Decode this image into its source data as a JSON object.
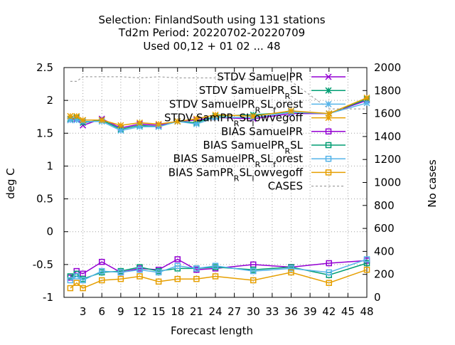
{
  "chart_data": {
    "type": "line",
    "title_lines": [
      "Selection: FinlandSouth using    131 stations",
      "Td2m    Period: 20220702-20220709",
      "Used  00,12  + 01 02 ... 48"
    ],
    "xlabel": "Forecast length",
    "ylabel": "deg C",
    "y2label": "No cases",
    "xlim": [
      0,
      48
    ],
    "ylim": [
      -1,
      2.5
    ],
    "y2lim": [
      0,
      2000
    ],
    "xticks": [
      "3",
      "6",
      "9",
      "12",
      "15",
      "18",
      "21",
      "24",
      "27",
      "30",
      "33",
      "36",
      "39",
      "42",
      "45",
      "48"
    ],
    "yticks": [
      "2.5",
      "2",
      "1.5",
      "1",
      "0.5",
      "0",
      "-0.5",
      "-1"
    ],
    "y2ticks": [
      "2000",
      "1800",
      "1600",
      "1400",
      "1200",
      "1000",
      "800",
      "600",
      "400",
      "200",
      "0"
    ],
    "grid": true,
    "legend_position": "top-right",
    "x": [
      1,
      2,
      3,
      6,
      9,
      12,
      15,
      18,
      21,
      24,
      30,
      36,
      42,
      48
    ],
    "series": [
      {
        "name": "STDV SamuelPR",
        "legend_parts": [
          [
            "STDV SamuelPR",
            ""
          ]
        ],
        "color": "#9400d3",
        "marker": "x",
        "axis": "y1",
        "values": [
          1.7,
          1.72,
          1.62,
          1.72,
          1.58,
          1.64,
          1.62,
          1.68,
          1.7,
          1.74,
          1.72,
          1.8,
          1.8,
          2.0
        ]
      },
      {
        "name": "STDV SamuelPR_RSL",
        "legend_parts": [
          [
            "STDV SamuelPR",
            ""
          ],
          [
            "R",
            "sub"
          ],
          [
            "SL",
            ""
          ]
        ],
        "color": "#009e73",
        "marker": "star",
        "axis": "y1",
        "values": [
          1.72,
          1.74,
          1.66,
          1.7,
          1.56,
          1.62,
          1.6,
          1.68,
          1.66,
          1.76,
          1.78,
          1.82,
          1.8,
          2.02
        ]
      },
      {
        "name": "STDV SamuelPR_RSL_forest",
        "legend_parts": [
          [
            "STDV SamuelPR",
            ""
          ],
          [
            "R",
            "sub"
          ],
          [
            "SL",
            ""
          ],
          [
            "f",
            "sub"
          ],
          [
            "orest",
            ""
          ]
        ],
        "color": "#56b4e9",
        "marker": "star",
        "axis": "y1",
        "values": [
          1.7,
          1.7,
          1.68,
          1.68,
          1.54,
          1.6,
          1.6,
          1.68,
          1.64,
          1.74,
          1.74,
          1.82,
          1.8,
          1.96
        ]
      },
      {
        "name": "STDV SamPR_RSL_lowvegoff",
        "legend_parts": [
          [
            "STDV SamPR",
            ""
          ],
          [
            "R",
            "sub"
          ],
          [
            "SL",
            ""
          ],
          [
            "l",
            "sub"
          ],
          [
            "owvegoff",
            ""
          ]
        ],
        "color": "#e69f00",
        "marker": "star",
        "axis": "y1",
        "values": [
          1.76,
          1.76,
          1.7,
          1.7,
          1.62,
          1.66,
          1.64,
          1.68,
          1.72,
          1.78,
          1.76,
          1.84,
          1.8,
          2.04
        ]
      },
      {
        "name": "BIAS SamuelPR",
        "legend_parts": [
          [
            "BIAS SamuelPR",
            ""
          ]
        ],
        "color": "#9400d3",
        "marker": "square",
        "axis": "y1",
        "values": [
          -0.7,
          -0.6,
          -0.64,
          -0.46,
          -0.62,
          -0.56,
          -0.58,
          -0.42,
          -0.58,
          -0.56,
          -0.5,
          -0.54,
          -0.48,
          -0.44
        ]
      },
      {
        "name": "BIAS SamuelPR_RSL",
        "legend_parts": [
          [
            "BIAS SamuelPR",
            ""
          ],
          [
            "R",
            "sub"
          ],
          [
            "SL",
            ""
          ]
        ],
        "color": "#009e73",
        "marker": "square",
        "axis": "y1",
        "values": [
          -0.68,
          -0.64,
          -0.72,
          -0.62,
          -0.6,
          -0.54,
          -0.6,
          -0.56,
          -0.56,
          -0.54,
          -0.58,
          -0.54,
          -0.66,
          -0.48
        ]
      },
      {
        "name": "BIAS SamuelPR_RSL_forest",
        "legend_parts": [
          [
            "BIAS SamuelPR",
            ""
          ],
          [
            "R",
            "sub"
          ],
          [
            "SL",
            ""
          ],
          [
            "f",
            "sub"
          ],
          [
            "orest",
            ""
          ]
        ],
        "color": "#56b4e9",
        "marker": "square",
        "axis": "y1",
        "values": [
          -0.74,
          -0.68,
          -0.74,
          -0.6,
          -0.62,
          -0.58,
          -0.62,
          -0.52,
          -0.56,
          -0.52,
          -0.6,
          -0.56,
          -0.62,
          -0.42
        ]
      },
      {
        "name": "BIAS SamPR_RSL_lowvegoff",
        "legend_parts": [
          [
            "BIAS SamPR",
            ""
          ],
          [
            "R",
            "sub"
          ],
          [
            "SL",
            ""
          ],
          [
            "l",
            "sub"
          ],
          [
            "owvegoff",
            ""
          ]
        ],
        "color": "#e69f00",
        "marker": "square",
        "axis": "y1",
        "values": [
          -0.86,
          -0.78,
          -0.86,
          -0.74,
          -0.72,
          -0.68,
          -0.76,
          -0.72,
          -0.72,
          -0.68,
          -0.74,
          -0.62,
          -0.78,
          -0.58
        ]
      },
      {
        "name": "CASES",
        "legend_parts": [
          [
            "CASES",
            ""
          ]
        ],
        "color": "#a0a0a0",
        "marker": "none",
        "dash": "3,3",
        "axis": "y2",
        "values": [
          1880,
          1880,
          1920,
          1920,
          1920,
          1910,
          1920,
          1910,
          1910,
          1910,
          1900,
          1880,
          1640,
          1640
        ]
      }
    ]
  }
}
